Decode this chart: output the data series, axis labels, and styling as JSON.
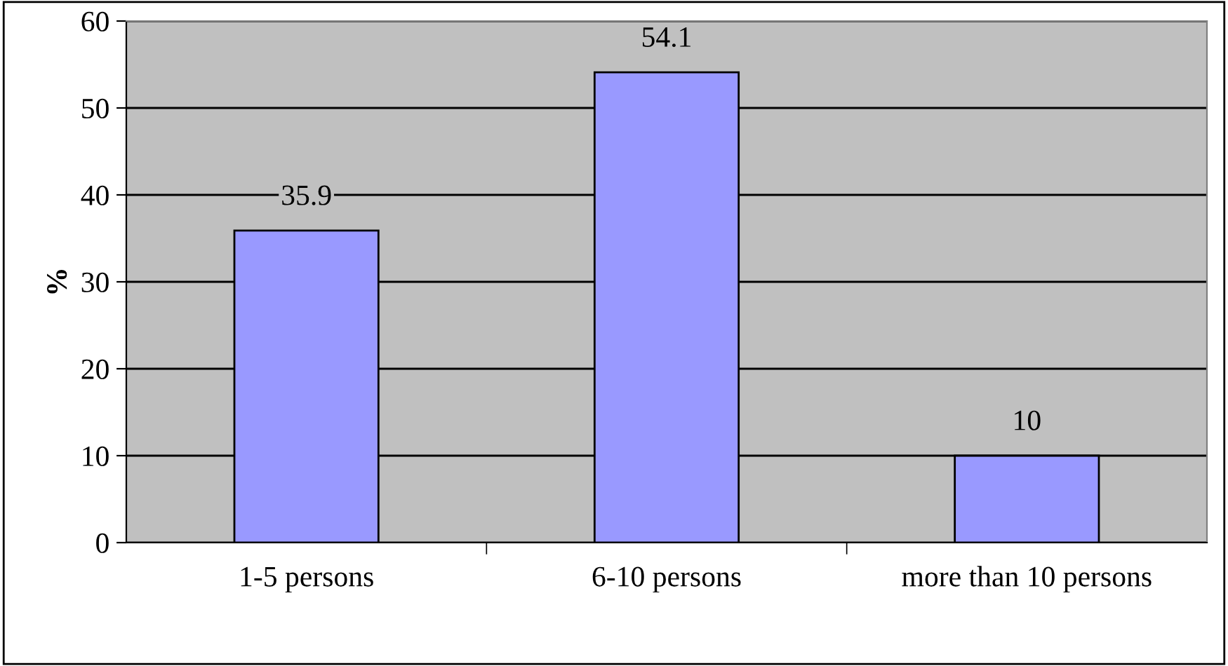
{
  "chart_data": {
    "type": "bar",
    "ylabel": "%",
    "categories": [
      "1-5 persons",
      "6-10 persons",
      "more than 10 persons"
    ],
    "values": [
      35.9,
      54.1,
      10
    ],
    "color": "#9999ff",
    "ylim": [
      0,
      60
    ],
    "yticks": [
      0,
      10,
      20,
      30,
      40,
      50,
      60
    ],
    "grid": "y",
    "data_labels": true,
    "legend": false
  }
}
